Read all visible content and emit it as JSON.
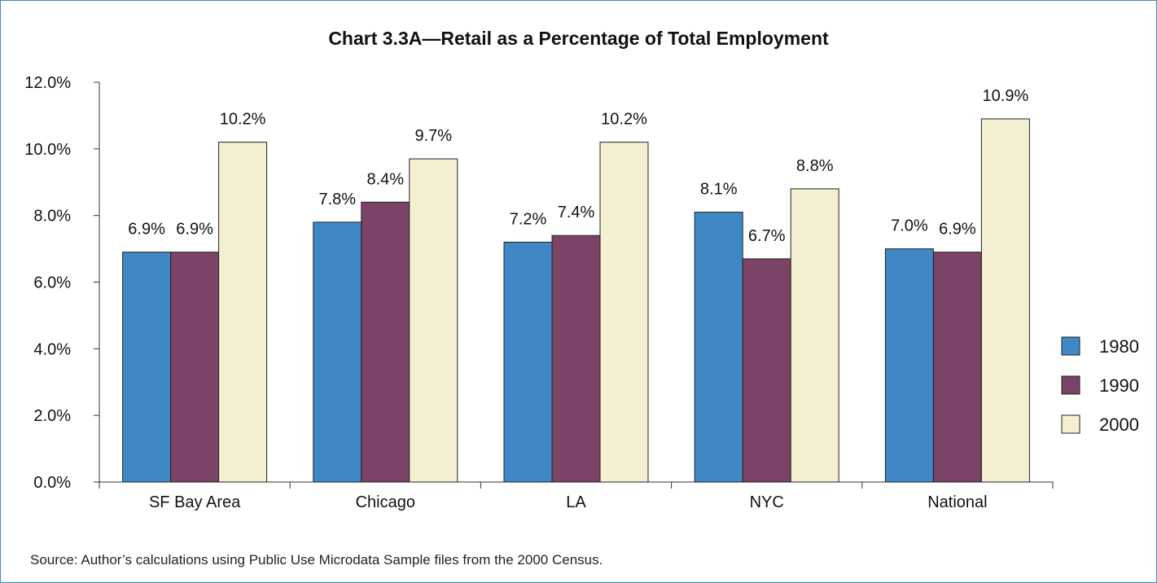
{
  "title": "Chart 3.3A—Retail as a Percentage of Total Employment",
  "source": "Source: Author’s calculations using Public Use Microdata Sample files from the 2000 Census.",
  "chart_data": {
    "type": "bar",
    "title": "Chart 3.3A—Retail as a Percentage of Total Employment",
    "xlabel": "",
    "ylabel": "",
    "ylim": [
      0,
      12
    ],
    "yticks": [
      "0.0%",
      "2.0%",
      "4.0%",
      "6.0%",
      "8.0%",
      "10.0%",
      "12.0%"
    ],
    "categories": [
      "SF Bay Area",
      "Chicago",
      "LA",
      "NYC",
      "National"
    ],
    "series": [
      {
        "name": "1980",
        "color": "#3f88c5",
        "values": [
          6.9,
          7.8,
          7.2,
          8.1,
          7.0
        ],
        "labels": [
          "6.9%",
          "7.8%",
          "7.2%",
          "8.1%",
          "7.0%"
        ]
      },
      {
        "name": "1990",
        "color": "#7b4366",
        "values": [
          6.9,
          8.4,
          7.4,
          6.7,
          6.9
        ],
        "labels": [
          "6.9%",
          "8.4%",
          "7.4%",
          "6.7%",
          "6.9%"
        ]
      },
      {
        "name": "2000",
        "color": "#f3f0d2",
        "values": [
          10.2,
          9.7,
          10.2,
          8.8,
          10.9
        ],
        "labels": [
          "10.2%",
          "9.7%",
          "10.2%",
          "8.8%",
          "10.9%"
        ]
      }
    ],
    "legend": "right",
    "grid": false
  }
}
